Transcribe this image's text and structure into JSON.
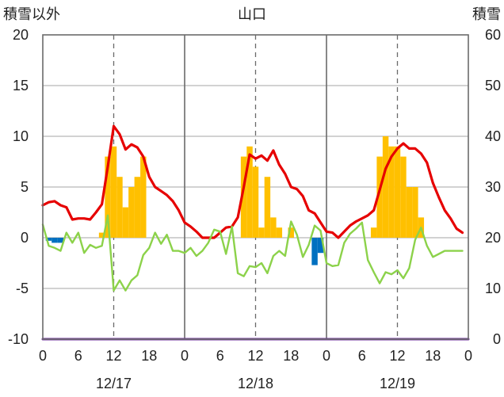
{
  "chart_data": {
    "type": "bar",
    "title": "山口",
    "y_left_label": "積雪以外",
    "y_right_label": "積雪",
    "y_left_range": [
      -10,
      20
    ],
    "y_left_ticks": [
      "20",
      "15",
      "10",
      "5",
      "0",
      "-5",
      "-10"
    ],
    "y_right_range": [
      0,
      60
    ],
    "y_right_ticks": [
      "60",
      "50",
      "40",
      "30",
      "20",
      "10",
      "0"
    ],
    "x_range": [
      0,
      72
    ],
    "x_tick_labels": [
      "0",
      "6",
      "12",
      "18",
      "0",
      "6",
      "12",
      "18",
      "0",
      "6",
      "12",
      "18",
      "0"
    ],
    "day_labels": [
      "12/17",
      "12/18",
      "12/19"
    ],
    "grid": true,
    "series": [
      {
        "kind": "line",
        "axis": "left",
        "color": "#e60000",
        "x": [
          0,
          1,
          2,
          3,
          4,
          5,
          6,
          7,
          8,
          9,
          10,
          11,
          12,
          13,
          14,
          15,
          16,
          17,
          18,
          19,
          20,
          21,
          22,
          23,
          24,
          25,
          26,
          27,
          28,
          29,
          30,
          31,
          32,
          33,
          34,
          35,
          36,
          37,
          38,
          39,
          40,
          41,
          42,
          43,
          44,
          45,
          46,
          47,
          48,
          49,
          50,
          51,
          52,
          53,
          54,
          55,
          56,
          57,
          58,
          59,
          60,
          61,
          62,
          63,
          64,
          65,
          66,
          67,
          68,
          69,
          70,
          71
        ],
        "y": [
          3.2,
          3.5,
          3.6,
          3.2,
          3.0,
          1.8,
          1.9,
          1.9,
          1.8,
          2.5,
          3.3,
          7.0,
          11.0,
          10.2,
          8.7,
          9.2,
          8.9,
          8.0,
          6.0,
          5.0,
          4.6,
          4.2,
          3.6,
          2.7,
          1.5,
          1.1,
          0.6,
          0.0,
          0.0,
          0.0,
          0.5,
          1.0,
          1.1,
          2.0,
          5.0,
          8.2,
          7.8,
          8.1,
          7.6,
          8.6,
          7.2,
          6.3,
          5.0,
          4.8,
          4.1,
          2.7,
          2.4,
          1.5,
          0.6,
          0.5,
          0.0,
          0.6,
          1.2,
          1.6,
          1.9,
          2.2,
          2.7,
          4.7,
          6.8,
          8.0,
          8.8,
          9.3,
          8.8,
          8.8,
          8.3,
          7.4,
          5.4,
          4.0,
          2.7,
          1.9,
          0.9,
          0.5
        ]
      },
      {
        "kind": "line",
        "axis": "left",
        "color": "#8cd24a",
        "x": [
          0,
          1,
          2,
          3,
          4,
          5,
          6,
          7,
          8,
          9,
          10,
          11,
          12,
          13,
          14,
          15,
          16,
          17,
          18,
          19,
          20,
          21,
          22,
          23,
          24,
          25,
          26,
          27,
          28,
          29,
          30,
          31,
          32,
          33,
          34,
          35,
          36,
          37,
          38,
          39,
          40,
          41,
          42,
          43,
          44,
          45,
          46,
          47,
          48,
          49,
          50,
          51,
          52,
          53,
          54,
          55,
          56,
          57,
          58,
          59,
          60,
          61,
          62,
          63,
          64,
          65,
          66,
          67,
          68,
          69,
          70,
          71
        ],
        "y": [
          1.3,
          -0.8,
          -1.0,
          -1.3,
          0.5,
          -0.5,
          0.5,
          -1.5,
          -0.7,
          -1.0,
          -0.8,
          2.2,
          -5.2,
          -4.2,
          -5.2,
          -4.2,
          -3.7,
          -1.7,
          -1.0,
          0.5,
          -0.6,
          0.3,
          -1.3,
          -1.3,
          -1.5,
          -1.0,
          -1.8,
          -1.3,
          -0.5,
          0.8,
          0.6,
          -1.6,
          1.1,
          -3.5,
          -3.8,
          -2.8,
          -2.9,
          -2.5,
          -3.5,
          -1.8,
          -1.3,
          -1.8,
          1.6,
          0.3,
          -1.9,
          -0.7,
          1.2,
          0.7,
          -2.5,
          -2.8,
          -2.7,
          -0.5,
          0.4,
          0.9,
          1.5,
          -2.2,
          -3.4,
          -4.5,
          -3.4,
          -3.6,
          -3.2,
          -4.0,
          -3.0,
          -0.2,
          1.0,
          -0.8,
          -1.9,
          -1.6,
          -1.3,
          -1.3,
          -1.3,
          -1.3
        ]
      },
      {
        "kind": "bar",
        "axis": "right",
        "color": "#ffc000",
        "x": [
          10,
          11,
          12,
          13,
          14,
          15,
          16,
          17,
          34,
          35,
          36,
          37,
          38,
          39,
          40,
          41,
          42,
          56,
          57,
          58,
          59,
          60,
          61,
          62,
          63,
          64
        ],
        "y": [
          21,
          36,
          38,
          32,
          26,
          30,
          32,
          36,
          36,
          38,
          34,
          22,
          32,
          24,
          22,
          20,
          22,
          22,
          36,
          40,
          38,
          38,
          36,
          30,
          30,
          24
        ]
      },
      {
        "kind": "bar",
        "axis": "left",
        "color": "#0070c0",
        "x": [
          1,
          2,
          3,
          46,
          47
        ],
        "y": [
          -0.3,
          -0.5,
          -0.5,
          -2.7,
          -1.5
        ]
      },
      {
        "kind": "line",
        "axis": "left",
        "color": "#7030a0",
        "x": [
          0,
          72
        ],
        "y": [
          -10,
          -10
        ]
      }
    ]
  }
}
